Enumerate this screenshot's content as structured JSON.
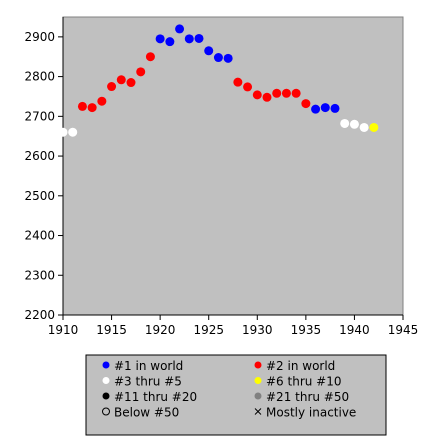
{
  "chart_data": {
    "type": "scatter",
    "title": "",
    "xlabel": "",
    "ylabel": "",
    "xlim": [
      1910,
      1945
    ],
    "ylim": [
      2200,
      2950
    ],
    "x_ticks": [
      1910,
      1915,
      1920,
      1925,
      1930,
      1935,
      1940,
      1945
    ],
    "y_ticks": [
      2200,
      2300,
      2400,
      2500,
      2600,
      2700,
      2800,
      2900
    ],
    "grid": false,
    "legend_position": "bottom",
    "plot_background": "#c0c0c0",
    "series": [
      {
        "name": "#1 in world",
        "color": "#0000ff",
        "marker": "dot",
        "points": [
          [
            1920,
            2895
          ],
          [
            1921,
            2888
          ],
          [
            1922,
            2920
          ],
          [
            1923,
            2895
          ],
          [
            1924,
            2896
          ],
          [
            1925,
            2865
          ],
          [
            1926,
            2848
          ],
          [
            1927,
            2846
          ],
          [
            1936,
            2718
          ],
          [
            1937,
            2722
          ],
          [
            1938,
            2720
          ]
        ]
      },
      {
        "name": "#2 in world",
        "color": "#ff0000",
        "marker": "dot",
        "points": [
          [
            1912,
            2725
          ],
          [
            1913,
            2722
          ],
          [
            1914,
            2738
          ],
          [
            1915,
            2775
          ],
          [
            1916,
            2792
          ],
          [
            1917,
            2785
          ],
          [
            1918,
            2812
          ],
          [
            1919,
            2850
          ],
          [
            1928,
            2786
          ],
          [
            1929,
            2774
          ],
          [
            1930,
            2754
          ],
          [
            1931,
            2748
          ],
          [
            1932,
            2758
          ],
          [
            1933,
            2758
          ],
          [
            1934,
            2758
          ],
          [
            1935,
            2732
          ]
        ]
      },
      {
        "name": "#3 thru #5",
        "color": "#ffffff",
        "marker": "dot",
        "points": [
          [
            1910,
            2660
          ],
          [
            1911,
            2660
          ],
          [
            1939,
            2682
          ],
          [
            1940,
            2680
          ],
          [
            1941,
            2672
          ]
        ]
      },
      {
        "name": "#6 thru #10",
        "color": "#ffff00",
        "marker": "dot",
        "points": [
          [
            1942,
            2672
          ]
        ]
      },
      {
        "name": "#11 thru #20",
        "color": "#000000",
        "marker": "dot",
        "points": []
      },
      {
        "name": "#21 thru #50",
        "color": "#808080",
        "marker": "dot",
        "points": []
      },
      {
        "name": "Below #50",
        "color": "#000000",
        "marker": "ring",
        "points": []
      },
      {
        "name": "Mostly inactive",
        "color": "#000000",
        "marker": "cross",
        "points": []
      }
    ]
  }
}
